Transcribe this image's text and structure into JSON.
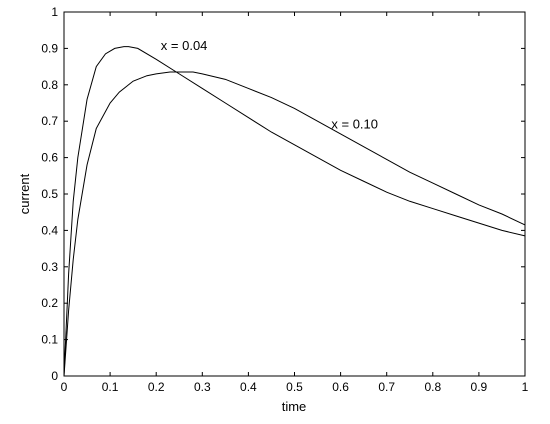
{
  "chart_data": {
    "type": "line",
    "title": "",
    "xlabel": "time",
    "ylabel": "current",
    "xlim": [
      0,
      1
    ],
    "ylim": [
      0,
      1
    ],
    "xticks": [
      0,
      0.1,
      0.2,
      0.3,
      0.4,
      0.5,
      0.6,
      0.7,
      0.8,
      0.9,
      1
    ],
    "xtick_labels": [
      "0",
      "0.1",
      "0.2",
      "0.3",
      "0.4",
      "0.5",
      "0.6",
      "0.7",
      "0.8",
      "0.9",
      "1"
    ],
    "yticks": [
      0,
      0.1,
      0.2,
      0.3,
      0.4,
      0.5,
      0.6,
      0.7,
      0.8,
      0.9,
      1
    ],
    "ytick_labels": [
      "0",
      "0.1",
      "0.2",
      "0.3",
      "0.4",
      "0.5",
      "0.6",
      "0.7",
      "0.8",
      "0.9",
      "1"
    ],
    "grid": false,
    "line_color": "#000000",
    "series": [
      {
        "x": [
          0,
          0.01,
          0.02,
          0.03,
          0.05,
          0.07,
          0.09,
          0.11,
          0.13,
          0.14,
          0.16,
          0.2,
          0.25,
          0.3,
          0.35,
          0.4,
          0.45,
          0.5,
          0.55,
          0.6,
          0.65,
          0.7,
          0.75,
          0.8,
          0.85,
          0.9,
          0.95,
          1
        ],
        "y": [
          0,
          0.28,
          0.48,
          0.6,
          0.76,
          0.85,
          0.885,
          0.9,
          0.905,
          0.905,
          0.9,
          0.87,
          0.83,
          0.79,
          0.75,
          0.71,
          0.67,
          0.635,
          0.6,
          0.565,
          0.535,
          0.505,
          0.48,
          0.46,
          0.44,
          0.42,
          0.4,
          0.385
        ]
      },
      {
        "x": [
          0,
          0.01,
          0.02,
          0.03,
          0.05,
          0.07,
          0.1,
          0.12,
          0.15,
          0.18,
          0.2,
          0.23,
          0.26,
          0.28,
          0.3,
          0.35,
          0.4,
          0.45,
          0.5,
          0.55,
          0.6,
          0.65,
          0.7,
          0.75,
          0.8,
          0.85,
          0.9,
          0.95,
          1
        ],
        "y": [
          0,
          0.18,
          0.32,
          0.43,
          0.58,
          0.68,
          0.75,
          0.78,
          0.81,
          0.825,
          0.83,
          0.835,
          0.835,
          0.835,
          0.83,
          0.815,
          0.79,
          0.765,
          0.735,
          0.7,
          0.665,
          0.63,
          0.595,
          0.56,
          0.53,
          0.5,
          0.47,
          0.445,
          0.415
        ]
      }
    ],
    "annotations": [
      {
        "text": "x = 0.04",
        "x": 0.21,
        "y": 0.895
      },
      {
        "text": "x = 0.10",
        "x": 0.58,
        "y": 0.68
      }
    ]
  }
}
